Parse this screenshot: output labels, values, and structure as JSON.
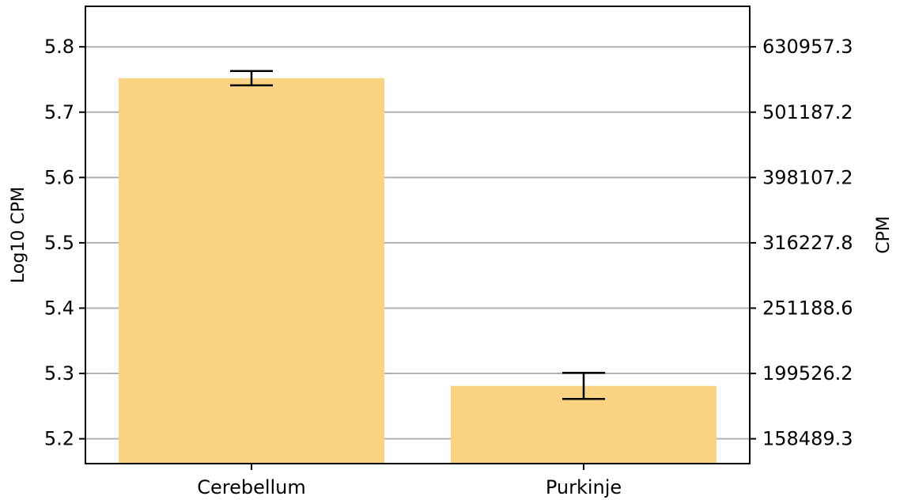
{
  "chart_data": {
    "type": "bar",
    "categories": [
      "Cerebellum",
      "Purkinje"
    ],
    "values": [
      5.752,
      5.281
    ],
    "error": [
      {
        "low": 5.741,
        "high": 5.763
      },
      {
        "low": 5.261,
        "high": 5.301
      }
    ],
    "ylabel": "Log10 CPM",
    "y2label": "CPM",
    "ylim": [
      5.162,
      5.862
    ],
    "yticks": [
      5.2,
      5.3,
      5.4,
      5.5,
      5.6,
      5.7,
      5.8
    ],
    "ytick_labels": [
      "5.2",
      "5.3",
      "5.4",
      "5.5",
      "5.6",
      "5.7",
      "5.8"
    ],
    "y2tick_labels": [
      "158489.3",
      "199526.2",
      "251188.6",
      "316227.8",
      "398107.2",
      "501187.2",
      "630957.3"
    ],
    "grid": true,
    "bar_color": "#fcd283"
  }
}
